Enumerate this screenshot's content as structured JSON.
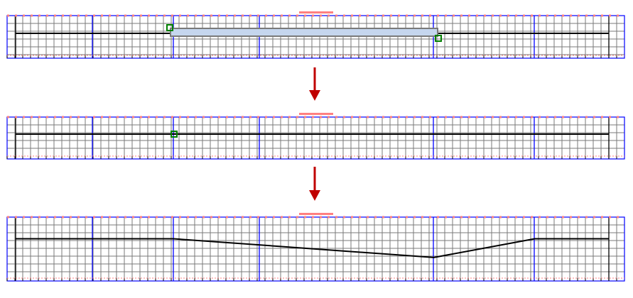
{
  "colors": {
    "grid": "#7a7a7a",
    "bar": "#0000ff",
    "line": "#000000",
    "ruler": "#ff8080",
    "handle": "#008000",
    "selection": "#c5d6ee",
    "arrow": "#c00000"
  },
  "panels": [
    {
      "name": "before",
      "selection": true,
      "curve": [
        [
          0,
          0.5
        ],
        [
          1,
          0.5
        ]
      ]
    },
    {
      "name": "handle-collapsed",
      "selection": false,
      "curve": [
        [
          0,
          0.5
        ],
        [
          1,
          0.5
        ]
      ]
    },
    {
      "name": "after",
      "selection": false,
      "curve": [
        [
          0,
          0.25
        ],
        [
          0.266,
          0.25
        ],
        [
          0.705,
          0.65
        ],
        [
          0.875,
          0.25
        ],
        [
          1,
          0.25
        ]
      ]
    }
  ],
  "arrows": 2
}
